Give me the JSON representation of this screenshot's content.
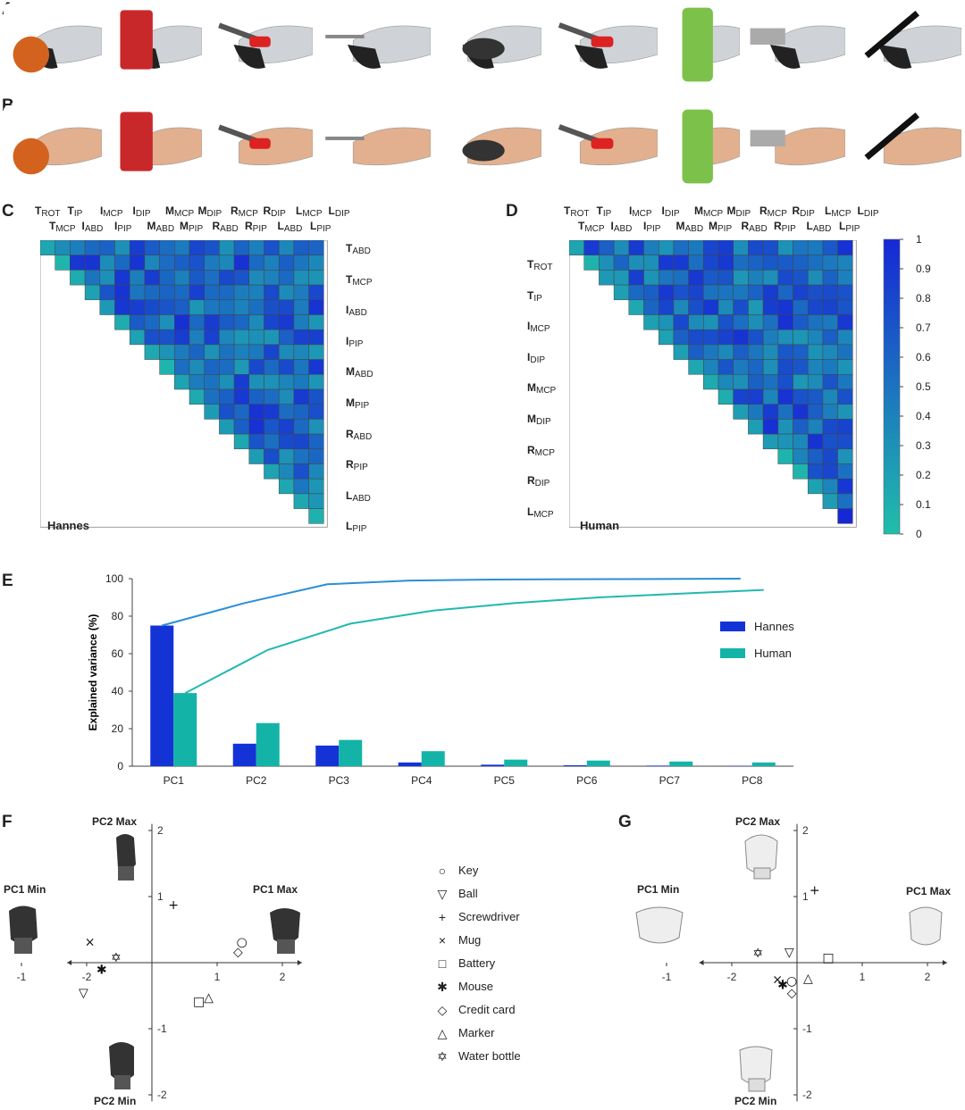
{
  "panels": {
    "a": "A",
    "b": "B",
    "c": "C",
    "d": "D",
    "e": "E",
    "f": "F",
    "g": "G"
  },
  "row_a_objects": [
    "ball",
    "mug",
    "screwdriver",
    "key",
    "mouse",
    "screwdriver",
    "water-bottle",
    "credit-card",
    "marker"
  ],
  "row_b_objects": [
    "ball",
    "mug",
    "screwdriver",
    "key",
    "mouse",
    "screwdriver",
    "water-bottle",
    "credit-card",
    "marker"
  ],
  "heatmap_c": {
    "title": "Hannes",
    "top_labels_1": [
      [
        "T",
        "ROT"
      ],
      [
        "T",
        "IP"
      ],
      [
        "I",
        "MCP"
      ],
      [
        "I",
        "DIP"
      ],
      [
        "M",
        "MCP"
      ],
      [
        "M",
        "DIP"
      ],
      [
        "R",
        "MCP"
      ],
      [
        "R",
        "DIP"
      ],
      [
        "L",
        "MCP"
      ],
      [
        "L",
        "DIP"
      ]
    ],
    "top_labels_2": [
      [
        "T",
        "MCP"
      ],
      [
        "I",
        "ABD"
      ],
      [
        "I",
        "PIP"
      ],
      [
        "M",
        "ABD"
      ],
      [
        "M",
        "PIP"
      ],
      [
        "R",
        "ABD"
      ],
      [
        "R",
        "PIP"
      ],
      [
        "L",
        "ABD"
      ],
      [
        "L",
        "PIP"
      ]
    ],
    "right_labels": [
      [
        "T",
        "ABD"
      ],
      [
        "T",
        "MCP"
      ],
      [
        "I",
        "ABD"
      ],
      [
        "I",
        "PIP"
      ],
      [
        "M",
        "ABD"
      ],
      [
        "M",
        "PIP"
      ],
      [
        "R",
        "ABD"
      ],
      [
        "R",
        "PIP"
      ],
      [
        "L",
        "ABD"
      ],
      [
        "L",
        "PIP"
      ]
    ]
  },
  "heatmap_d": {
    "title": "Human",
    "top_labels_1": [
      [
        "T",
        "ROT"
      ],
      [
        "T",
        "IP"
      ],
      [
        "I",
        "MCP"
      ],
      [
        "I",
        "DIP"
      ],
      [
        "M",
        "MCP"
      ],
      [
        "M",
        "DIP"
      ],
      [
        "R",
        "MCP"
      ],
      [
        "R",
        "DIP"
      ],
      [
        "L",
        "MCP"
      ],
      [
        "L",
        "DIP"
      ]
    ],
    "top_labels_2": [
      [
        "T",
        "MCP"
      ],
      [
        "I",
        "ABD"
      ],
      [
        "I",
        "PIP"
      ],
      [
        "M",
        "ABD"
      ],
      [
        "M",
        "PIP"
      ],
      [
        "R",
        "ABD"
      ],
      [
        "R",
        "PIP"
      ],
      [
        "L",
        "ABD"
      ],
      [
        "L",
        "PIP"
      ]
    ],
    "left_labels": [
      [
        "T",
        "ROT"
      ],
      [
        "T",
        "IP"
      ],
      [
        "I",
        "MCP"
      ],
      [
        "I",
        "DIP"
      ],
      [
        "M",
        "MCP"
      ],
      [
        "M",
        "DIP"
      ],
      [
        "R",
        "MCP"
      ],
      [
        "R",
        "DIP"
      ],
      [
        "L",
        "MCP"
      ]
    ],
    "colorbar_ticks": [
      "1",
      "0.9",
      "0.8",
      "0.7",
      "0.6",
      "0.5",
      "0.4",
      "0.3",
      "0.2",
      "0.1",
      "0"
    ]
  },
  "colors": {
    "hannes": "#1433d6",
    "human": "#14b3a8",
    "hannes_line": "#2a8fd6",
    "human_line": "#22b8b0"
  },
  "chart_data": [
    {
      "type": "bar",
      "title": "",
      "ylabel": "Explained variance (%)",
      "xlabel": "",
      "ylim": [
        0,
        100
      ],
      "yticks": [
        "0",
        "20",
        "40",
        "60",
        "80",
        "100"
      ],
      "categories": [
        "PC1",
        "PC2",
        "PC3",
        "PC4",
        "PC5",
        "PC6",
        "PC7",
        "PC8"
      ],
      "series": [
        {
          "name": "Hannes",
          "values": [
            75,
            12,
            11,
            2,
            0.8,
            0.5,
            0.3,
            0.2
          ],
          "cumulative": [
            75,
            87,
            97,
            99,
            99.5,
            99.7,
            99.8,
            100
          ]
        },
        {
          "name": "Human",
          "values": [
            39,
            23,
            14,
            8,
            3.5,
            3,
            2.5,
            2
          ],
          "cumulative": [
            39,
            62,
            76,
            83,
            87,
            90,
            92,
            94
          ]
        }
      ],
      "legend": "right"
    },
    {
      "type": "scatter",
      "panel": "F",
      "xlim": [
        -1.3,
        2.3
      ],
      "ylim": [
        -2.1,
        2.1
      ],
      "xticks": [
        "-1",
        "-2",
        "1",
        "2"
      ],
      "yticks": [
        "2",
        "1",
        "-1",
        "-2"
      ],
      "annotations": [
        "PC2 Max",
        "PC1 Min",
        "PC1 Max",
        "PC2 Min"
      ],
      "points": [
        {
          "label": "Key",
          "x": 1.38,
          "y": 0.32
        },
        {
          "label": "Credit card",
          "x": 1.32,
          "y": 0.17
        },
        {
          "label": "Screwdriver",
          "x": 0.33,
          "y": 0.88
        },
        {
          "label": "Mug",
          "x": -0.95,
          "y": 0.32
        },
        {
          "label": "Mouse",
          "x": -0.77,
          "y": -0.1
        },
        {
          "label": "Water bottle",
          "x": -0.55,
          "y": 0.08
        },
        {
          "label": "Ball",
          "x": -1.05,
          "y": -0.45
        },
        {
          "label": "Battery",
          "x": 0.72,
          "y": -0.58
        },
        {
          "label": "Marker",
          "x": 0.87,
          "y": -0.52
        }
      ]
    },
    {
      "type": "scatter",
      "panel": "G",
      "xlim": [
        -1.5,
        2.3
      ],
      "ylim": [
        -2.1,
        2.1
      ],
      "xticks": [
        "-1",
        "-2",
        "1",
        "2"
      ],
      "yticks": [
        "2",
        "1",
        "-1",
        "-2"
      ],
      "annotations": [
        "PC2 Max",
        "PC1 Min",
        "PC1 Max",
        "PC2 Min"
      ],
      "points": [
        {
          "label": "Screwdriver",
          "x": 0.27,
          "y": 1.1
        },
        {
          "label": "Ball",
          "x": -0.12,
          "y": 0.16
        },
        {
          "label": "Battery",
          "x": 0.48,
          "y": 0.08
        },
        {
          "label": "Water bottle",
          "x": -0.6,
          "y": 0.15
        },
        {
          "label": "Mug",
          "x": -0.3,
          "y": -0.25
        },
        {
          "label": "Mouse",
          "x": -0.22,
          "y": -0.33
        },
        {
          "label": "Key",
          "x": -0.08,
          "y": -0.27
        },
        {
          "label": "Marker",
          "x": 0.17,
          "y": -0.23
        },
        {
          "label": "Credit card",
          "x": -0.08,
          "y": -0.45
        }
      ]
    }
  ],
  "legend_items": [
    {
      "symbol": "○",
      "label": "Key"
    },
    {
      "symbol": "▽",
      "label": "Ball"
    },
    {
      "symbol": "+",
      "label": "Screwdriver"
    },
    {
      "symbol": "×",
      "label": "Mug"
    },
    {
      "symbol": "□",
      "label": "Battery"
    },
    {
      "symbol": "✱",
      "label": "Mouse"
    },
    {
      "symbol": "◇",
      "label": "Credit card"
    },
    {
      "symbol": "△",
      "label": "Marker"
    },
    {
      "symbol": "✡",
      "label": "Water bottle"
    }
  ],
  "bar_legend": {
    "hannes": "Hannes",
    "human": "Human"
  }
}
